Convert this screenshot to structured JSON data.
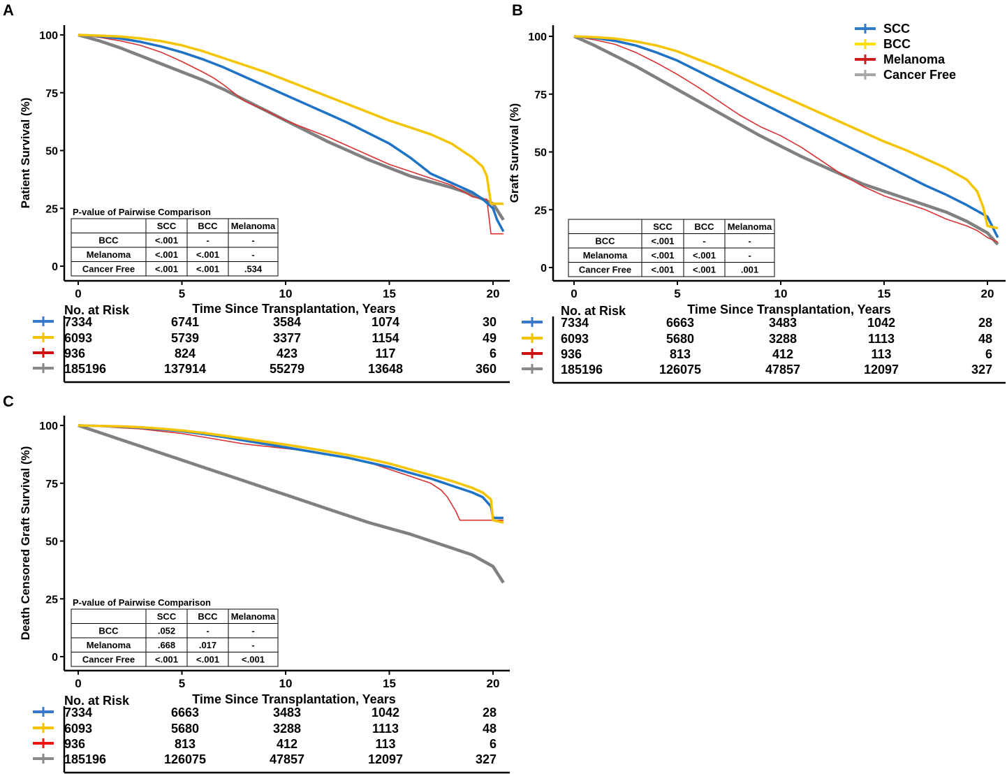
{
  "legend": [
    {
      "name": "SCC",
      "color": "#2f7ccc"
    },
    {
      "name": "BCC",
      "color": "#ffe000"
    },
    {
      "name": "Melanoma",
      "color": "#cc1f1f"
    },
    {
      "name": "Cancer Free",
      "color": "#a6a6a6"
    }
  ],
  "chart_data": [
    {
      "panel": "A",
      "type": "line",
      "subtype": "kaplan-meier",
      "xlabel": "Time Since Transplantation, Years",
      "ylabel": "Patient  Survival (%)",
      "xlim": [
        -0.5,
        20.8
      ],
      "ylim": [
        -5,
        103
      ],
      "xticks": [
        "0",
        "5",
        "10",
        "15",
        "20"
      ],
      "yticks": [
        "0",
        "25",
        "50",
        "75",
        "100"
      ],
      "series": [
        {
          "name": "SCC",
          "color": "#1f73c6",
          "width": 3.5,
          "x": [
            0,
            1,
            2,
            3,
            4,
            5,
            6,
            7,
            8,
            9,
            10,
            11,
            12,
            13,
            14,
            15,
            16,
            17,
            18,
            19,
            19.5,
            20,
            20.2,
            20.5
          ],
          "y": [
            100,
            99.5,
            98.5,
            97,
            95,
            92.5,
            89.5,
            86,
            82,
            78,
            74,
            70,
            66,
            62,
            57.5,
            53,
            47,
            40,
            36,
            32,
            29,
            25,
            20,
            15
          ]
        },
        {
          "name": "BCC",
          "color": "#f5c400",
          "width": 3.5,
          "x": [
            0,
            1,
            2,
            3,
            4,
            5,
            6,
            7,
            8,
            9,
            10,
            11,
            12,
            13,
            14,
            15,
            16,
            17,
            18,
            19,
            19.5,
            19.7,
            19.9,
            20.5
          ],
          "y": [
            100,
            99.7,
            99.3,
            98.5,
            97.3,
            95.5,
            93,
            90,
            87,
            84,
            80.5,
            77,
            73.5,
            70,
            66.5,
            63,
            60,
            57,
            53,
            47,
            43,
            39,
            27,
            27
          ]
        },
        {
          "name": "Melanoma",
          "color": "#d93030",
          "width": 1.6,
          "x": [
            0,
            1,
            2,
            3,
            4,
            5,
            6,
            6.5,
            7,
            7.5,
            8,
            9,
            10,
            11,
            12,
            13,
            14,
            15,
            16,
            17,
            18,
            19,
            19.5,
            19.7,
            19.9,
            20.5
          ],
          "y": [
            100,
            99,
            97.5,
            95.5,
            92.5,
            88.5,
            84,
            81.5,
            78.5,
            75,
            71.5,
            67.5,
            63,
            59.5,
            56,
            52,
            48,
            44,
            41,
            38,
            35,
            30,
            29,
            29,
            14,
            14
          ]
        },
        {
          "name": "Cancer Free",
          "color": "#808080",
          "width": 4.5,
          "x": [
            0,
            1,
            2,
            3,
            4,
            5,
            6,
            7,
            8,
            9,
            10,
            11,
            12,
            13,
            14,
            15,
            16,
            17,
            18,
            19,
            20,
            20.5
          ],
          "y": [
            100,
            97.5,
            94.5,
            91,
            87.5,
            84,
            80.5,
            76.5,
            72,
            67.5,
            63,
            58.5,
            54,
            50,
            46,
            42.5,
            39,
            36.5,
            34,
            31,
            27,
            20
          ]
        }
      ],
      "pvalue_table": {
        "title": "P-value of Pairwise Comparison",
        "columns": [
          "",
          "SCC",
          "BCC",
          "Melanoma"
        ],
        "rows": [
          [
            "BCC",
            "<.001",
            "-",
            "-"
          ],
          [
            "Melanoma",
            "<.001",
            "<.001",
            "-"
          ],
          [
            "Cancer Free",
            "<.001",
            "<.001",
            ".534"
          ]
        ]
      },
      "risk_table": {
        "title": "No. at Risk",
        "rows": [
          [
            "7334",
            "6741",
            "3584",
            "1074",
            "30"
          ],
          [
            "6093",
            "5739",
            "3377",
            "1154",
            "49"
          ],
          [
            "936",
            "824",
            "423",
            "117",
            "6"
          ],
          [
            "185196",
            "137914",
            "55279",
            "13648",
            "360"
          ]
        ]
      }
    },
    {
      "panel": "B",
      "type": "line",
      "subtype": "kaplan-meier",
      "xlabel": "Time Since Transplantation, Years",
      "ylabel": "Graft Survival (%)",
      "xlim": [
        -0.5,
        20.8
      ],
      "ylim": [
        -5,
        103
      ],
      "xticks": [
        "0",
        "5",
        "10",
        "15",
        "20"
      ],
      "yticks": [
        "0",
        "25",
        "50",
        "75",
        "100"
      ],
      "series": [
        {
          "name": "SCC",
          "color": "#1f73c6",
          "width": 3.5,
          "x": [
            0,
            1,
            2,
            3,
            4,
            5,
            6,
            7,
            8,
            9,
            10,
            11,
            12,
            13,
            14,
            15,
            16,
            17,
            18,
            19,
            20,
            20.5
          ],
          "y": [
            100,
            99.3,
            98,
            96,
            93,
            89.5,
            85,
            80.5,
            76,
            71.5,
            67,
            62.5,
            58,
            53.5,
            49,
            44.5,
            40,
            35.5,
            31.5,
            27,
            22,
            13
          ]
        },
        {
          "name": "BCC",
          "color": "#f5c400",
          "width": 3.5,
          "x": [
            0,
            1,
            2,
            3,
            4,
            5,
            6,
            7,
            8,
            9,
            10,
            11,
            12,
            13,
            14,
            15,
            16,
            17,
            18,
            19,
            19.5,
            19.8,
            20,
            20.5
          ],
          "y": [
            100,
            99.6,
            99,
            97.8,
            96,
            93.5,
            90,
            86.5,
            82.5,
            78.5,
            74.5,
            70.5,
            66.5,
            62.5,
            58.5,
            54.5,
            51,
            47,
            43,
            38,
            33,
            26,
            18,
            17
          ]
        },
        {
          "name": "Melanoma",
          "color": "#d93030",
          "width": 1.6,
          "x": [
            0,
            1,
            2,
            3,
            4,
            5,
            6,
            7,
            8,
            9,
            10,
            11,
            12,
            13,
            14,
            15,
            16,
            17,
            18,
            19,
            19.5,
            20,
            20.5
          ],
          "y": [
            100,
            98.5,
            96.5,
            93,
            88.5,
            83.5,
            78,
            72,
            66,
            61,
            57,
            52,
            46,
            40,
            35,
            31,
            28,
            25,
            21,
            18,
            16,
            13,
            11
          ]
        },
        {
          "name": "Cancer Free",
          "color": "#808080",
          "width": 4.5,
          "x": [
            0,
            1,
            2,
            3,
            4,
            5,
            6,
            7,
            8,
            9,
            10,
            11,
            12,
            13,
            14,
            15,
            16,
            17,
            18,
            19,
            20,
            20.5
          ],
          "y": [
            100,
            96,
            91.5,
            87,
            82,
            77,
            72,
            67,
            62,
            57,
            52.5,
            48,
            44,
            40,
            36,
            33,
            30,
            27,
            24,
            20,
            15,
            10
          ]
        }
      ],
      "pvalue_table": {
        "title": "",
        "columns": [
          "",
          "SCC",
          "BCC",
          "Melanoma"
        ],
        "rows": [
          [
            "BCC",
            "<.001",
            "-",
            "-"
          ],
          [
            "Melanoma",
            "<.001",
            "<.001",
            "-"
          ],
          [
            "Cancer Free",
            "<.001",
            "<.001",
            ".001"
          ]
        ]
      },
      "risk_table": {
        "title": "No. at Risk",
        "rows": [
          [
            "7334",
            "6663",
            "3483",
            "1042",
            "28"
          ],
          [
            "6093",
            "5680",
            "3288",
            "1113",
            "48"
          ],
          [
            "936",
            "813",
            "412",
            "113",
            "6"
          ],
          [
            "185196",
            "126075",
            "47857",
            "12097",
            "327"
          ]
        ]
      }
    },
    {
      "panel": "C",
      "type": "line",
      "subtype": "kaplan-meier",
      "xlabel": "Time Since Transplantation, Years",
      "ylabel": "Death Censored Graft Survival (%)",
      "xlim": [
        -0.5,
        20.8
      ],
      "ylim": [
        -5,
        103
      ],
      "xticks": [
        "0",
        "5",
        "10",
        "15",
        "20"
      ],
      "yticks": [
        "0",
        "25",
        "50",
        "75",
        "100"
      ],
      "series": [
        {
          "name": "SCC",
          "color": "#1f73c6",
          "width": 3.5,
          "x": [
            0,
            1,
            2,
            3,
            4,
            5,
            6,
            7,
            8,
            9,
            10,
            11,
            12,
            13,
            14,
            15,
            16,
            17,
            18,
            19,
            19.5,
            19.9,
            20,
            20.5
          ],
          "y": [
            100,
            99.8,
            99.5,
            99,
            98.3,
            97.5,
            96.3,
            95,
            93.5,
            92,
            90.5,
            89,
            87.5,
            86,
            84,
            82,
            79.5,
            77,
            74,
            71,
            69,
            65,
            60,
            60
          ]
        },
        {
          "name": "BCC",
          "color": "#f5c400",
          "width": 3.5,
          "x": [
            0,
            1,
            2,
            3,
            4,
            5,
            6,
            7,
            8,
            9,
            10,
            11,
            12,
            13,
            14,
            15,
            16,
            17,
            18,
            19,
            19.5,
            19.9,
            20,
            20.5
          ],
          "y": [
            100,
            99.8,
            99.6,
            99.2,
            98.6,
            97.8,
            96.8,
            95.6,
            94.3,
            93,
            91.7,
            90.3,
            88.8,
            87.2,
            85.5,
            83.5,
            81,
            78.5,
            76,
            73,
            71,
            68,
            59,
            58
          ]
        },
        {
          "name": "Melanoma",
          "color": "#d93030",
          "width": 1.6,
          "x": [
            0,
            1,
            2,
            3,
            4,
            5,
            6,
            7,
            8,
            9,
            10,
            11,
            12,
            13,
            14,
            15,
            16,
            17,
            17.5,
            17.8,
            18.2,
            18.4,
            19,
            19.9,
            20,
            20.5
          ],
          "y": [
            100,
            99.6,
            99,
            98.5,
            97.5,
            96.5,
            95,
            93.5,
            92,
            91,
            90,
            89,
            87.5,
            86,
            84,
            81,
            78,
            75,
            72,
            69,
            63,
            59,
            59,
            59,
            59,
            59
          ]
        },
        {
          "name": "Cancer Free",
          "color": "#808080",
          "width": 4.5,
          "x": [
            0,
            1,
            2,
            3,
            4,
            5,
            6,
            7,
            8,
            9,
            10,
            11,
            12,
            13,
            14,
            15,
            16,
            17,
            18,
            19,
            20,
            20.5
          ],
          "y": [
            100,
            97,
            94,
            91,
            88,
            85,
            82,
            79,
            76,
            73,
            70,
            67,
            64,
            61,
            58,
            55.5,
            53,
            50,
            47,
            44,
            39,
            32
          ]
        }
      ],
      "pvalue_table": {
        "title": "P-value of Pairwise Comparison",
        "columns": [
          "",
          "SCC",
          "BCC",
          "Melanoma"
        ],
        "rows": [
          [
            "BCC",
            ".052",
            "-",
            "-"
          ],
          [
            "Melanoma",
            ".668",
            ".017",
            "-"
          ],
          [
            "Cancer Free",
            "<.001",
            "<.001",
            "<.001"
          ]
        ]
      },
      "risk_table": {
        "title": "No. at Risk",
        "rows": [
          [
            "7334",
            "6663",
            "3483",
            "1042",
            "28"
          ],
          [
            "6093",
            "5680",
            "3288",
            "1113",
            "48"
          ],
          [
            "936",
            "813",
            "412",
            "113",
            "6"
          ],
          [
            "185196",
            "126075",
            "47857",
            "12097",
            "327"
          ]
        ]
      }
    }
  ],
  "risk_marker_colors": [
    "#3a78c9",
    "#f5c400",
    "#d01010",
    "#8a8a8a"
  ],
  "risk_marker_colors_c": [
    "#3a78c9",
    "#f5c400",
    "#f01515",
    "#8a8a8a"
  ]
}
